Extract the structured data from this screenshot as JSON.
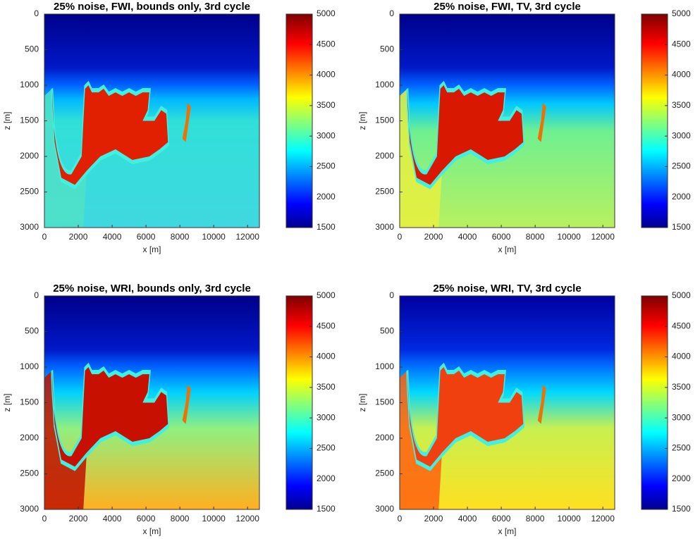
{
  "chart_data": [
    {
      "type": "heatmap",
      "title": "25% noise, FWI, bounds only, 3rd cycle",
      "xlabel": "x [m]",
      "ylabel": "z [m]",
      "colormap": "jet",
      "xlim": [
        0,
        12700
      ],
      "xticks": [
        0,
        2000,
        4000,
        6000,
        8000,
        10000,
        12000
      ],
      "ylim": [
        0,
        3000
      ],
      "yticks": [
        0,
        500,
        1000,
        1500,
        2000,
        2500,
        3000
      ],
      "clim": [
        1500,
        5000
      ],
      "cticks": [
        1500,
        2000,
        2500,
        3000,
        3500,
        4000,
        4500,
        5000
      ]
    },
    {
      "type": "heatmap",
      "title": "25% noise, FWI, TV, 3rd cycle",
      "xlabel": "x [m]",
      "ylabel": "z [m]",
      "colormap": "jet",
      "xlim": [
        0,
        12700
      ],
      "xticks": [
        0,
        2000,
        4000,
        6000,
        8000,
        10000,
        12000
      ],
      "ylim": [
        0,
        3000
      ],
      "yticks": [
        0,
        500,
        1000,
        1500,
        2000,
        2500,
        3000
      ],
      "clim": [
        1500,
        5000
      ],
      "cticks": [
        1500,
        2000,
        2500,
        3000,
        3500,
        4000,
        4500,
        5000
      ]
    },
    {
      "type": "heatmap",
      "title": "25% noise, WRI, bounds only, 3rd cycle",
      "xlabel": "x [m]",
      "ylabel": "z [m]",
      "colormap": "jet",
      "xlim": [
        0,
        12700
      ],
      "xticks": [
        0,
        2000,
        4000,
        6000,
        8000,
        10000,
        12000
      ],
      "ylim": [
        0,
        3000
      ],
      "yticks": [
        0,
        500,
        1000,
        1500,
        2000,
        2500,
        3000
      ],
      "clim": [
        1500,
        5000
      ],
      "cticks": [
        1500,
        2000,
        2500,
        3000,
        3500,
        4000,
        4500,
        5000
      ]
    },
    {
      "type": "heatmap",
      "title": "25% noise, WRI, TV, 3rd cycle",
      "xlabel": "x [m]",
      "ylabel": "z [m]",
      "colormap": "jet",
      "xlim": [
        0,
        12700
      ],
      "xticks": [
        0,
        2000,
        4000,
        6000,
        8000,
        10000,
        12000
      ],
      "ylim": [
        0,
        3000
      ],
      "yticks": [
        0,
        500,
        1000,
        1500,
        2000,
        2500,
        3000
      ],
      "clim": [
        1500,
        5000
      ],
      "cticks": [
        1500,
        2000,
        2500,
        3000,
        3500,
        4000,
        4500,
        5000
      ]
    }
  ]
}
